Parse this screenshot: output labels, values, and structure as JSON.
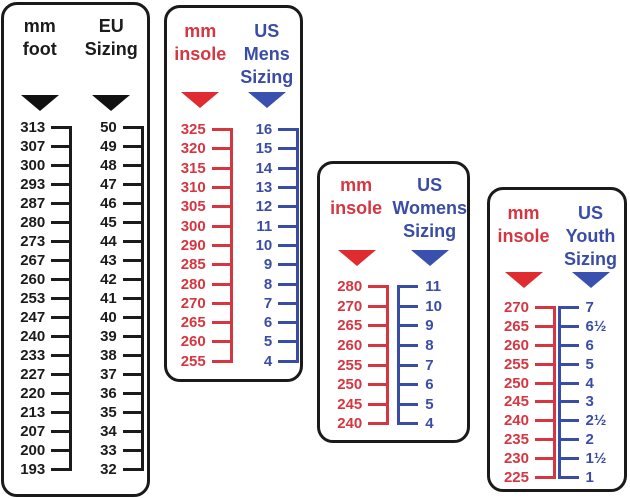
{
  "colors": {
    "black": "#1b1b1b",
    "red": "#d63640",
    "blue": "#3a4da6",
    "black_triangle": "#111111",
    "red_triangle": "#e02b30",
    "blue_triangle": "#3a50ae"
  },
  "panels": [
    {
      "name": "eu-sizing",
      "left": {
        "header_lines": [
          "mm",
          "foot"
        ],
        "color_key": "black",
        "triangle_key": "black_triangle",
        "numbers_side": "left"
      },
      "right": {
        "header_lines": [
          "EU",
          "Sizing"
        ],
        "color_key": "black",
        "triangle_key": "black_triangle",
        "numbers_side": "left"
      }
    },
    {
      "name": "us-mens-sizing",
      "left": {
        "header_lines": [
          "mm",
          "insole"
        ],
        "color_key": "red",
        "triangle_key": "red_triangle",
        "numbers_side": "left"
      },
      "right": {
        "header_lines": [
          "US",
          "Mens",
          "Sizing"
        ],
        "color_key": "blue",
        "triangle_key": "blue_triangle",
        "numbers_side": "left"
      }
    },
    {
      "name": "us-womens-sizing",
      "left": {
        "header_lines": [
          "mm",
          "insole"
        ],
        "color_key": "red",
        "triangle_key": "red_triangle",
        "numbers_side": "left"
      },
      "right": {
        "header_lines": [
          "US",
          "Womens",
          "Sizing"
        ],
        "color_key": "blue",
        "triangle_key": "blue_triangle",
        "numbers_side": "right"
      }
    },
    {
      "name": "us-youth-sizing",
      "left": {
        "header_lines": [
          "mm",
          "insole"
        ],
        "color_key": "red",
        "triangle_key": "red_triangle",
        "numbers_side": "left"
      },
      "right": {
        "header_lines": [
          "US",
          "Youth",
          "Sizing"
        ],
        "color_key": "blue",
        "triangle_key": "blue_triangle",
        "numbers_side": "right"
      }
    }
  ],
  "chart_data": [
    {
      "type": "table",
      "title": "mm foot to EU Sizing",
      "columns": [
        "mm foot",
        "EU Sizing"
      ],
      "rows": [
        [
          313,
          50
        ],
        [
          307,
          49
        ],
        [
          300,
          48
        ],
        [
          293,
          47
        ],
        [
          287,
          46
        ],
        [
          280,
          45
        ],
        [
          273,
          44
        ],
        [
          267,
          43
        ],
        [
          260,
          42
        ],
        [
          253,
          41
        ],
        [
          247,
          40
        ],
        [
          240,
          39
        ],
        [
          233,
          38
        ],
        [
          227,
          37
        ],
        [
          220,
          36
        ],
        [
          213,
          35
        ],
        [
          207,
          34
        ],
        [
          200,
          33
        ],
        [
          193,
          32
        ]
      ]
    },
    {
      "type": "table",
      "title": "mm insole to US Mens Sizing",
      "columns": [
        "mm insole",
        "US Mens Sizing"
      ],
      "rows": [
        [
          325,
          16
        ],
        [
          320,
          15
        ],
        [
          315,
          14
        ],
        [
          310,
          13
        ],
        [
          305,
          12
        ],
        [
          300,
          11
        ],
        [
          290,
          10
        ],
        [
          285,
          9
        ],
        [
          280,
          8
        ],
        [
          270,
          7
        ],
        [
          265,
          6
        ],
        [
          260,
          5
        ],
        [
          255,
          4
        ]
      ]
    },
    {
      "type": "table",
      "title": "mm insole to US Womens Sizing",
      "columns": [
        "mm insole",
        "US Womens Sizing"
      ],
      "rows": [
        [
          280,
          11
        ],
        [
          270,
          10
        ],
        [
          265,
          9
        ],
        [
          260,
          8
        ],
        [
          255,
          7
        ],
        [
          250,
          6
        ],
        [
          245,
          5
        ],
        [
          240,
          4
        ]
      ]
    },
    {
      "type": "table",
      "title": "mm insole to US Youth Sizing",
      "columns": [
        "mm insole",
        "US Youth Sizing"
      ],
      "rows": [
        [
          270,
          "7"
        ],
        [
          265,
          "6½"
        ],
        [
          260,
          "6"
        ],
        [
          255,
          "5"
        ],
        [
          250,
          "4"
        ],
        [
          245,
          "3"
        ],
        [
          240,
          "2½"
        ],
        [
          235,
          "2"
        ],
        [
          230,
          "1½"
        ],
        [
          225,
          "1"
        ]
      ]
    }
  ]
}
